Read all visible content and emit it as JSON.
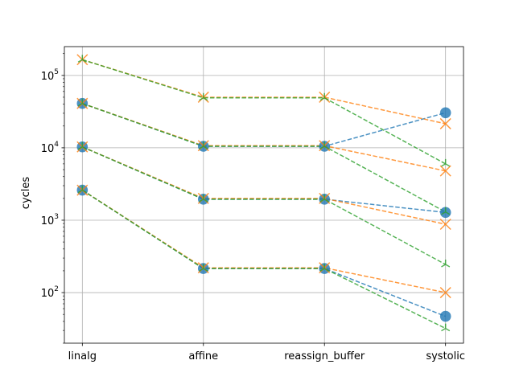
{
  "chart_data": {
    "type": "line",
    "title": "",
    "xlabel": "",
    "ylabel": "cycles",
    "yscale": "log",
    "ylim": [
      20,
      250000
    ],
    "grid": true,
    "categories": [
      "linalg",
      "affine",
      "reassign_buffer",
      "systolic"
    ],
    "y_ticks": [
      {
        "value": 100,
        "base": "10",
        "exp": "2"
      },
      {
        "value": 1000,
        "base": "10",
        "exp": "3"
      },
      {
        "value": 10000,
        "base": "10",
        "exp": "4"
      },
      {
        "value": 100000,
        "base": "10",
        "exp": "5"
      }
    ],
    "series": [
      {
        "color": "#1f77b4",
        "marker": "circle",
        "values": [
          2600,
          215,
          215,
          47
        ]
      },
      {
        "color": "#ff7f0e",
        "marker": "x",
        "values": [
          2600,
          220,
          220,
          100
        ]
      },
      {
        "color": "#2ca02c",
        "marker": "tri",
        "values": [
          2600,
          215,
          215,
          32
        ]
      },
      {
        "color": "#1f77b4",
        "marker": "circle",
        "values": [
          10300,
          1950,
          1950,
          1280
        ]
      },
      {
        "color": "#ff7f0e",
        "marker": "x",
        "values": [
          10300,
          2000,
          2000,
          880
        ]
      },
      {
        "color": "#2ca02c",
        "marker": "tri",
        "values": [
          10300,
          1950,
          1950,
          245
        ]
      },
      {
        "color": "#1f77b4",
        "marker": "circle",
        "values": [
          41000,
          10500,
          10500,
          30500
        ]
      },
      {
        "color": "#ff7f0e",
        "marker": "x",
        "values": [
          41000,
          10700,
          10700,
          4800
        ]
      },
      {
        "color": "#2ca02c",
        "marker": "tri",
        "values": [
          41000,
          10500,
          10500,
          1300
        ]
      },
      {
        "color": "#ff7f0e",
        "marker": "x",
        "values": [
          165000,
          50000,
          50000,
          21500
        ]
      },
      {
        "color": "#2ca02c",
        "marker": "tri",
        "values": [
          165000,
          49000,
          49000,
          6000
        ]
      }
    ]
  }
}
